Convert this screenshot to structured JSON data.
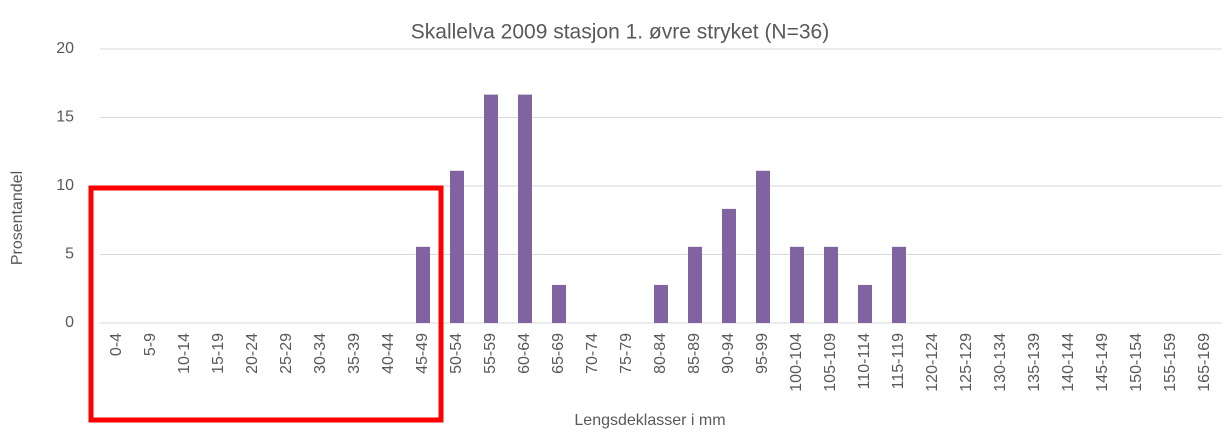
{
  "chart_data": {
    "type": "bar",
    "title": "Skallelva 2009 stasjon 1. øvre stryket (N=36)",
    "x_label": "Lengsdeklasser i mm",
    "y_label": "Prosentandel",
    "categories": [
      "0-4",
      "5-9",
      "10-14",
      "15-19",
      "20-24",
      "25-29",
      "30-34",
      "35-39",
      "40-44",
      "45-49",
      "50-54",
      "55-59",
      "60-64",
      "65-69",
      "70-74",
      "75-79",
      "80-84",
      "85-89",
      "90-94",
      "95-99",
      "100-104",
      "105-109",
      "110-114",
      "115-119",
      "120-124",
      "125-129",
      "130-134",
      "135-139",
      "140-144",
      "145-149",
      "150-154",
      "155-159",
      "165-169"
    ],
    "values": [
      0,
      0,
      0,
      0,
      0,
      0,
      0,
      0,
      0,
      5.56,
      11.11,
      16.67,
      16.67,
      2.78,
      0,
      0,
      2.78,
      5.56,
      8.33,
      11.11,
      5.56,
      5.56,
      2.78,
      5.56,
      0,
      0,
      0,
      0,
      0,
      0,
      0,
      0,
      0
    ],
    "color": "#8064a2",
    "ylim": [
      0,
      20
    ],
    "yticks": [
      0,
      5,
      10,
      15,
      20
    ],
    "grid": true
  }
}
